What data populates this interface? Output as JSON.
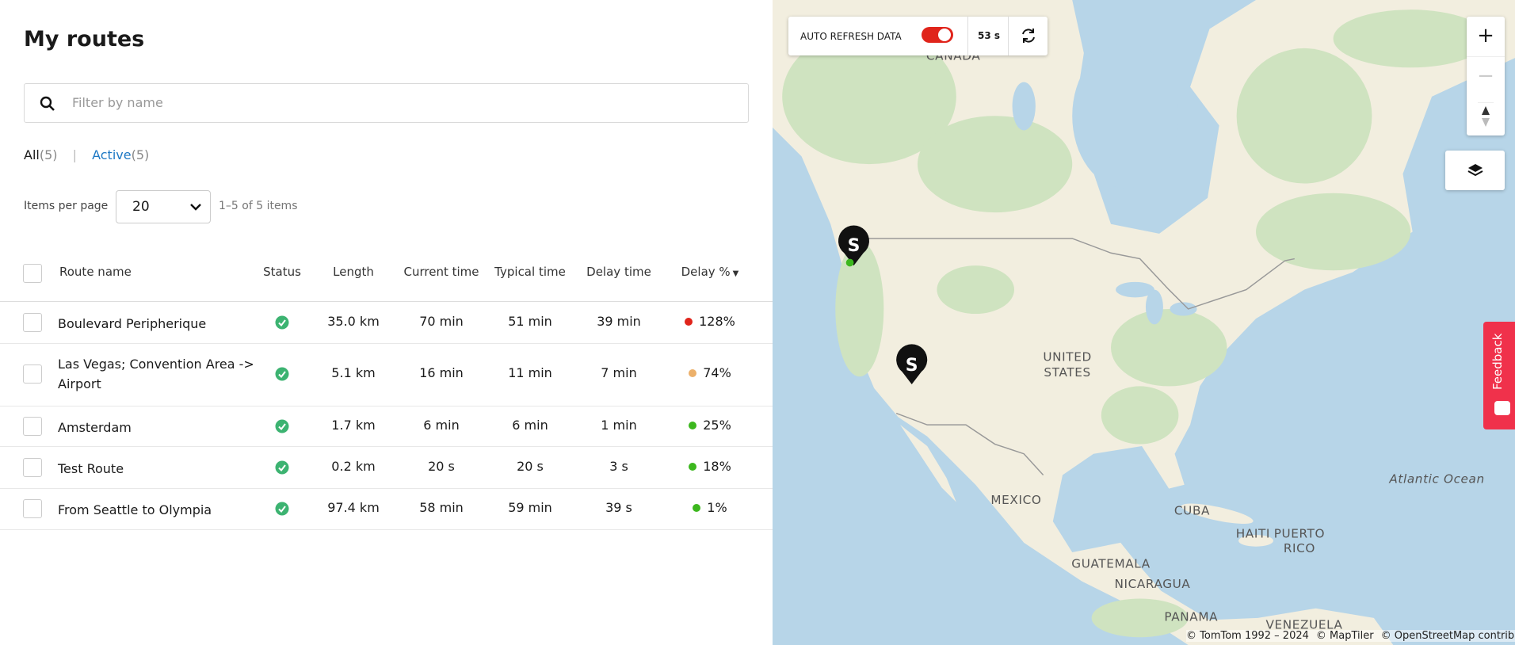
{
  "header": {
    "title": "My routes"
  },
  "filter": {
    "placeholder": "Filter by name"
  },
  "tabs": [
    {
      "label": "All",
      "count": "(5)"
    },
    {
      "label": "Active",
      "count": "(5)"
    }
  ],
  "pagination": {
    "label": "Items per page",
    "per_page": "20",
    "range": "1–5 of 5 items"
  },
  "table": {
    "columns": [
      "Route name",
      "Status",
      "Length",
      "Current time",
      "Typical time",
      "Delay time",
      "Delay %"
    ],
    "rows": [
      {
        "name": "Boulevard Peripherique",
        "length": "35.0 km",
        "current": "70 min",
        "typical": "51 min",
        "delay": "39 min",
        "delay_pct": "128%",
        "color": "#e0241b"
      },
      {
        "name": "Las Vegas; Convention Area -> Airport",
        "length": "5.1 km",
        "current": "16 min",
        "typical": "11 min",
        "delay": "7 min",
        "delay_pct": "74%",
        "color": "#ecb06a"
      },
      {
        "name": "Amsterdam",
        "length": "1.7 km",
        "current": "6 min",
        "typical": "6 min",
        "delay": "1 min",
        "delay_pct": "25%",
        "color": "#3cb71e"
      },
      {
        "name": "Test Route",
        "length": "0.2 km",
        "current": "20 s",
        "typical": "20 s",
        "delay": "3 s",
        "delay_pct": "18%",
        "color": "#3cb71e"
      },
      {
        "name": "From Seattle to Olympia",
        "length": "97.4 km",
        "current": "58 min",
        "typical": "59 min",
        "delay": "39 s",
        "delay_pct": "1%",
        "color": "#3cb71e"
      }
    ]
  },
  "map": {
    "auto_refresh": "AUTO REFRESH DATA",
    "countdown": "53 s",
    "labels": [
      "CANADA",
      "UNITED",
      "STATES",
      "MEXICO",
      "CUBA",
      "HAITI",
      "PUERTO",
      "RICO",
      "GUATEMALA",
      "NICARAGUA",
      "PANAMA",
      "VENEZUELA",
      "Atlantic Ocean"
    ],
    "attribution": [
      "© TomTom 1992 – 2024",
      "© MapTiler",
      "© OpenStreetMap contributors"
    ]
  },
  "feedback": "Feedback"
}
